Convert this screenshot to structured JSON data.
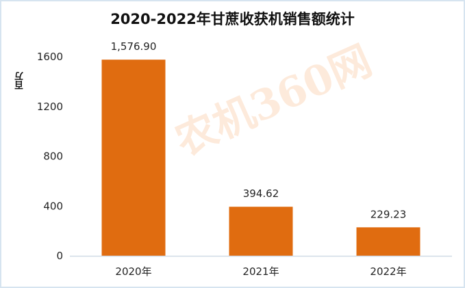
{
  "chart_data": {
    "type": "bar",
    "title": "2020-2022年甘蔗收获机销售额统计",
    "ylabel": "百万",
    "xlabel": "",
    "categories": [
      "2020年",
      "2021年",
      "2022年"
    ],
    "values": [
      1576.9,
      394.62,
      229.23
    ],
    "data_labels": [
      "1,576.90",
      "394.62",
      "229.23"
    ],
    "yticks": [
      "0",
      "400",
      "800",
      "1200",
      "1600"
    ],
    "ylim": [
      0,
      1600
    ],
    "grid": false,
    "bar_color": "#e06c10"
  },
  "watermark": "农机360网"
}
